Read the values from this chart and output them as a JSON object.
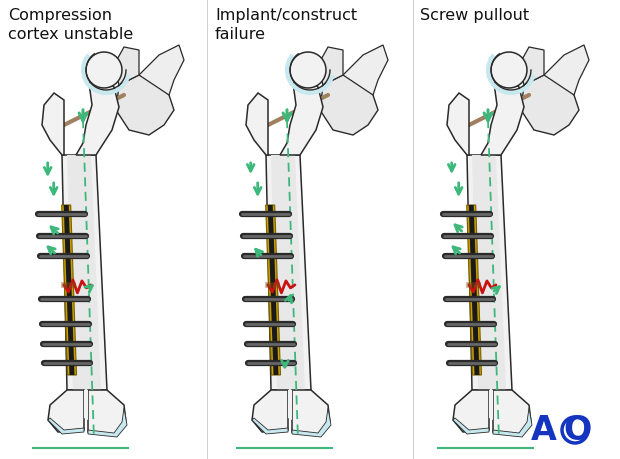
{
  "background_color": "#ffffff",
  "panel_titles": [
    "Compression\ncortex unstable",
    "Implant/construct\nfailure",
    "Screw pullout"
  ],
  "title_fontsize": 11.5,
  "arrow_color": "#3db87a",
  "bone_outline_color": "#2a2a2a",
  "bone_fill_color": "#f2f2f2",
  "bone_fill_inner": "#e0e0e0",
  "plate_color_gold": "#c8a000",
  "plate_color_dark": "#1a1a1a",
  "screw_color_dark": "#2a2a2a",
  "screw_color_mid": "#666666",
  "fracture_color": "#cc1111",
  "dashed_line_color": "#3db87a",
  "ground_line_color": "#3db87a",
  "ao_color": "#1535c0",
  "cartilage_color": "#c8e8f0",
  "ligament_color": "#a08060"
}
